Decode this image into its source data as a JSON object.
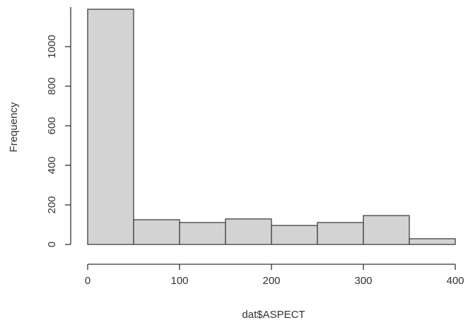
{
  "chart_data": {
    "type": "histogram",
    "x_label": "dat$ASPECT",
    "y_label": "Frequency",
    "bins": [
      0,
      50,
      100,
      150,
      200,
      250,
      300,
      350,
      400
    ],
    "values": [
      1189,
      125,
      111,
      129,
      96,
      111,
      146,
      29
    ],
    "color": "#d3d3d3",
    "xlim": [
      0,
      400
    ],
    "xticks": [
      0,
      100,
      200,
      300,
      400
    ],
    "ylim": [
      0,
      1200
    ],
    "yticks": [
      0,
      200,
      400,
      600,
      800,
      1000
    ]
  }
}
